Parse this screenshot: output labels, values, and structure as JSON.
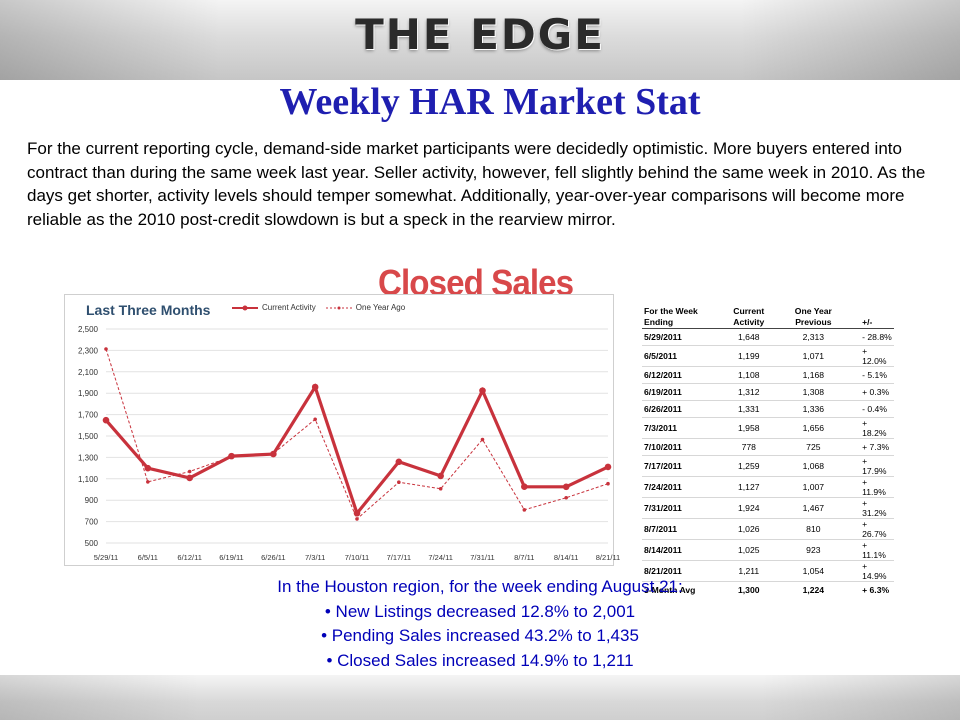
{
  "header": {
    "brand": "THE EDGE"
  },
  "page": {
    "title": "Weekly HAR Market Stat",
    "intro": "For the current reporting cycle, demand-side market participants were decidedly optimistic. More buyers entered into contract than during the same week last year. Seller activity, however, fell slightly behind the same week in 2010. As the days get shorter, activity levels should temper somewhat. Additionally, year-over-year comparisons will become more reliable as the 2010 post-credit slowdown is but a speck in the rearview mirror.",
    "section_title": "Closed Sales"
  },
  "colors": {
    "current": "#c8323c",
    "previous": "#c8323c",
    "title": "#1f1fb0",
    "summary": "#0000b8",
    "section": "#d8484a"
  },
  "chart_data": {
    "type": "line",
    "title": "Last Three Months",
    "categories": [
      "5/29/11",
      "6/5/11",
      "6/12/11",
      "6/19/11",
      "6/26/11",
      "7/3/11",
      "7/10/11",
      "7/17/11",
      "7/24/11",
      "7/31/11",
      "8/7/11",
      "8/14/11",
      "8/21/11"
    ],
    "series": [
      {
        "name": "Current Activity",
        "values": [
          1648,
          1199,
          1108,
          1312,
          1331,
          1958,
          778,
          1259,
          1127,
          1924,
          1026,
          1025,
          1211
        ]
      },
      {
        "name": "One Year Ago",
        "values": [
          2313,
          1071,
          1168,
          1308,
          1336,
          1656,
          725,
          1068,
          1007,
          1467,
          810,
          923,
          1054
        ]
      }
    ],
    "yticks": [
      "2,500",
      "2,300",
      "2,100",
      "1,900",
      "1,700",
      "1,500",
      "1,300",
      "1,100",
      "900",
      "700",
      "500"
    ],
    "ylim": [
      500,
      2500
    ],
    "grid": true,
    "legend": "top"
  },
  "table": {
    "headers": [
      "For the Week Ending",
      "Current Activity",
      "One Year Previous",
      "+/-"
    ],
    "rows": [
      [
        "5/29/2011",
        "1,648",
        "2,313",
        "- 28.8%"
      ],
      [
        "6/5/2011",
        "1,199",
        "1,071",
        "+ 12.0%"
      ],
      [
        "6/12/2011",
        "1,108",
        "1,168",
        "- 5.1%"
      ],
      [
        "6/19/2011",
        "1,312",
        "1,308",
        "+ 0.3%"
      ],
      [
        "6/26/2011",
        "1,331",
        "1,336",
        "- 0.4%"
      ],
      [
        "7/3/2011",
        "1,958",
        "1,656",
        "+ 18.2%"
      ],
      [
        "7/10/2011",
        "778",
        "725",
        "+ 7.3%"
      ],
      [
        "7/17/2011",
        "1,259",
        "1,068",
        "+ 17.9%"
      ],
      [
        "7/24/2011",
        "1,127",
        "1,007",
        "+ 11.9%"
      ],
      [
        "7/31/2011",
        "1,924",
        "1,467",
        "+ 31.2%"
      ],
      [
        "8/7/2011",
        "1,026",
        "810",
        "+ 26.7%"
      ],
      [
        "8/14/2011",
        "1,025",
        "923",
        "+ 11.1%"
      ],
      [
        "8/21/2011",
        "1,211",
        "1,054",
        "+ 14.9%"
      ]
    ],
    "total": [
      "3-Month Avg",
      "1,300",
      "1,224",
      "+ 6.3%"
    ]
  },
  "summary": {
    "heading": "In the Houston region, for the week ending August 21:",
    "bullets": [
      "• New Listings decreased 12.8% to 2,001",
      "• Pending Sales increased 43.2% to 1,435",
      "• Closed Sales increased 14.9% to 1,211"
    ]
  }
}
